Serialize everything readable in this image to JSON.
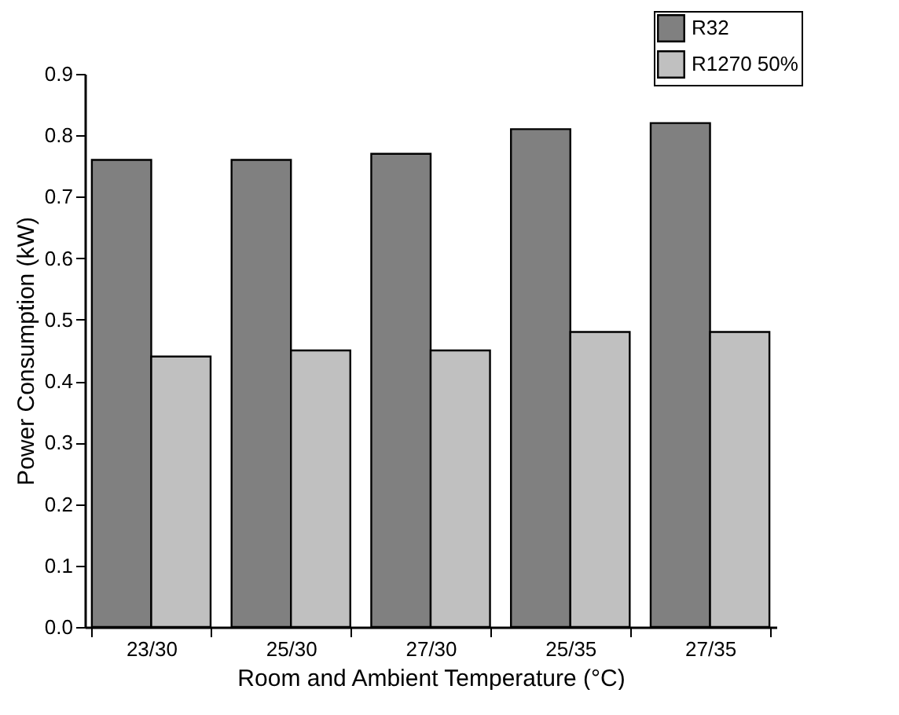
{
  "chart_data": {
    "type": "bar",
    "xlabel": "Room and Ambient Temperature (°C)",
    "ylabel": "Power Consumption (kW)",
    "categories": [
      "23/30",
      "25/30",
      "27/30",
      "25/35",
      "27/35"
    ],
    "series": [
      {
        "name": "R32",
        "color": "#808080",
        "values": [
          0.76,
          0.76,
          0.77,
          0.81,
          0.82
        ]
      },
      {
        "name": "R1270 50%",
        "color": "#c0c0c0",
        "values": [
          0.44,
          0.45,
          0.45,
          0.48,
          0.48
        ]
      }
    ],
    "ylim": [
      0,
      0.9
    ],
    "yticks": [
      {
        "value": 0,
        "label": "0.0"
      },
      0.1,
      0.2,
      0.3,
      0.4,
      0.5,
      0.6,
      0.7,
      0.8,
      0.9
    ],
    "grid": false,
    "legend": "top right"
  }
}
